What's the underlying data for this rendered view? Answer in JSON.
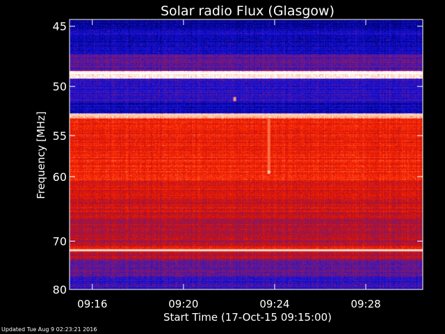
{
  "chart_data": {
    "type": "heatmap",
    "title": "Solar radio Flux (Glasgow)",
    "xlabel": "Start Time (17-Oct-15 09:15:00)",
    "ylabel": "Frequency [MHz]",
    "x_start": "09:15:00",
    "x_end": "09:30:30",
    "x_ticks": [
      {
        "time": "09:16",
        "label": "09:16"
      },
      {
        "time": "09:20",
        "label": "09:20"
      },
      {
        "time": "09:24",
        "label": "09:24"
      },
      {
        "time": "09:28",
        "label": "09:28"
      }
    ],
    "ylim": [
      44.5,
      80
    ],
    "y_ticks": [
      {
        "value": 45,
        "label": "45"
      },
      {
        "value": 50,
        "label": "50"
      },
      {
        "value": 55,
        "label": "55"
      },
      {
        "value": 60,
        "label": "60"
      },
      {
        "value": 70,
        "label": "70"
      },
      {
        "value": 80,
        "label": "80"
      }
    ],
    "colormap": [
      "#000070",
      "#1010e0",
      "#6a1a8a",
      "#c81010",
      "#ff2a00",
      "#ff9060",
      "#ffffff"
    ],
    "intensity_bands": [
      {
        "f0": 44.5,
        "f1": 45.2,
        "level": 0.05
      },
      {
        "f0": 45.2,
        "f1": 47.2,
        "level": 0.12
      },
      {
        "f0": 47.2,
        "f1": 48.6,
        "level": 0.3
      },
      {
        "f0": 48.6,
        "f1": 49.3,
        "level": 0.95
      },
      {
        "f0": 49.3,
        "f1": 51.6,
        "level": 0.2
      },
      {
        "f0": 51.6,
        "f1": 52.6,
        "level": 0.1
      },
      {
        "f0": 52.6,
        "f1": 53.1,
        "level": 0.9
      },
      {
        "f0": 53.1,
        "f1": 60.5,
        "level": 0.62
      },
      {
        "f0": 60.5,
        "f1": 63.0,
        "level": 0.55
      },
      {
        "f0": 63.0,
        "f1": 66.0,
        "level": 0.52
      },
      {
        "f0": 66.0,
        "f1": 70.8,
        "level": 0.46
      },
      {
        "f0": 70.8,
        "f1": 71.6,
        "level": 0.6
      },
      {
        "f0": 71.6,
        "f1": 71.9,
        "level": 0.9
      },
      {
        "f0": 71.9,
        "f1": 73.5,
        "level": 0.45
      },
      {
        "f0": 73.5,
        "f1": 77.0,
        "level": 0.32
      },
      {
        "f0": 77.0,
        "f1": 80.0,
        "level": 0.22
      }
    ],
    "bright_lines": [
      {
        "freq": 48.8,
        "level": 1.0
      },
      {
        "freq": 52.8,
        "level": 0.92
      },
      {
        "freq": 71.7,
        "level": 0.95
      }
    ],
    "features": [
      {
        "time": "09:23:45",
        "f0": 53.2,
        "f1": 59.6,
        "level": 0.78
      },
      {
        "time": "09:23:45",
        "f0": 59.2,
        "f1": 59.6,
        "level": 0.92
      },
      {
        "time": "09:22:15",
        "f0": 51.0,
        "f1": 51.4,
        "level": 0.85
      }
    ],
    "grid": false,
    "legend": "none"
  },
  "footer": {
    "updated_text": "Updated Tue Aug  9 02:23:21 2016"
  },
  "colors": {
    "background": "#000000",
    "text": "#ffffff",
    "axis": "#ffffff"
  }
}
